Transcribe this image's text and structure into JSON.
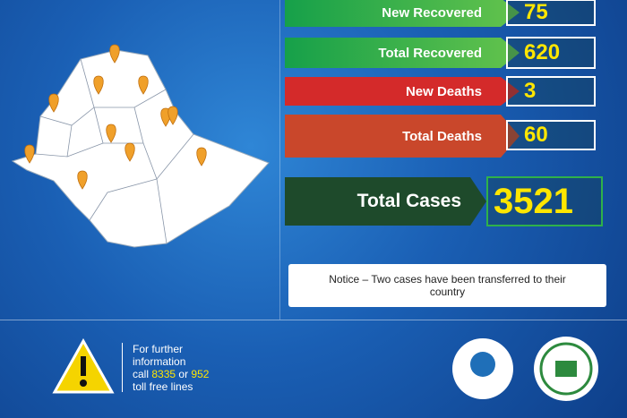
{
  "stats": [
    {
      "label": "New Recovered",
      "value": 75,
      "kind": "green"
    },
    {
      "label": "Total Recovered",
      "value": 620,
      "kind": "green"
    },
    {
      "label": "New Deaths",
      "value": 3,
      "kind": "red"
    },
    {
      "label": "Total Deaths",
      "value": 60,
      "kind": "orange"
    }
  ],
  "total": {
    "label": "Total Cases",
    "value": 3521
  },
  "notice": "Notice – Two cases have been transferred to their country",
  "footer": {
    "line1": "For further",
    "line2": "information",
    "call": "call",
    "phone1": "8335",
    "or": "or",
    "phone2": "952",
    "line4": "toll free lines"
  }
}
